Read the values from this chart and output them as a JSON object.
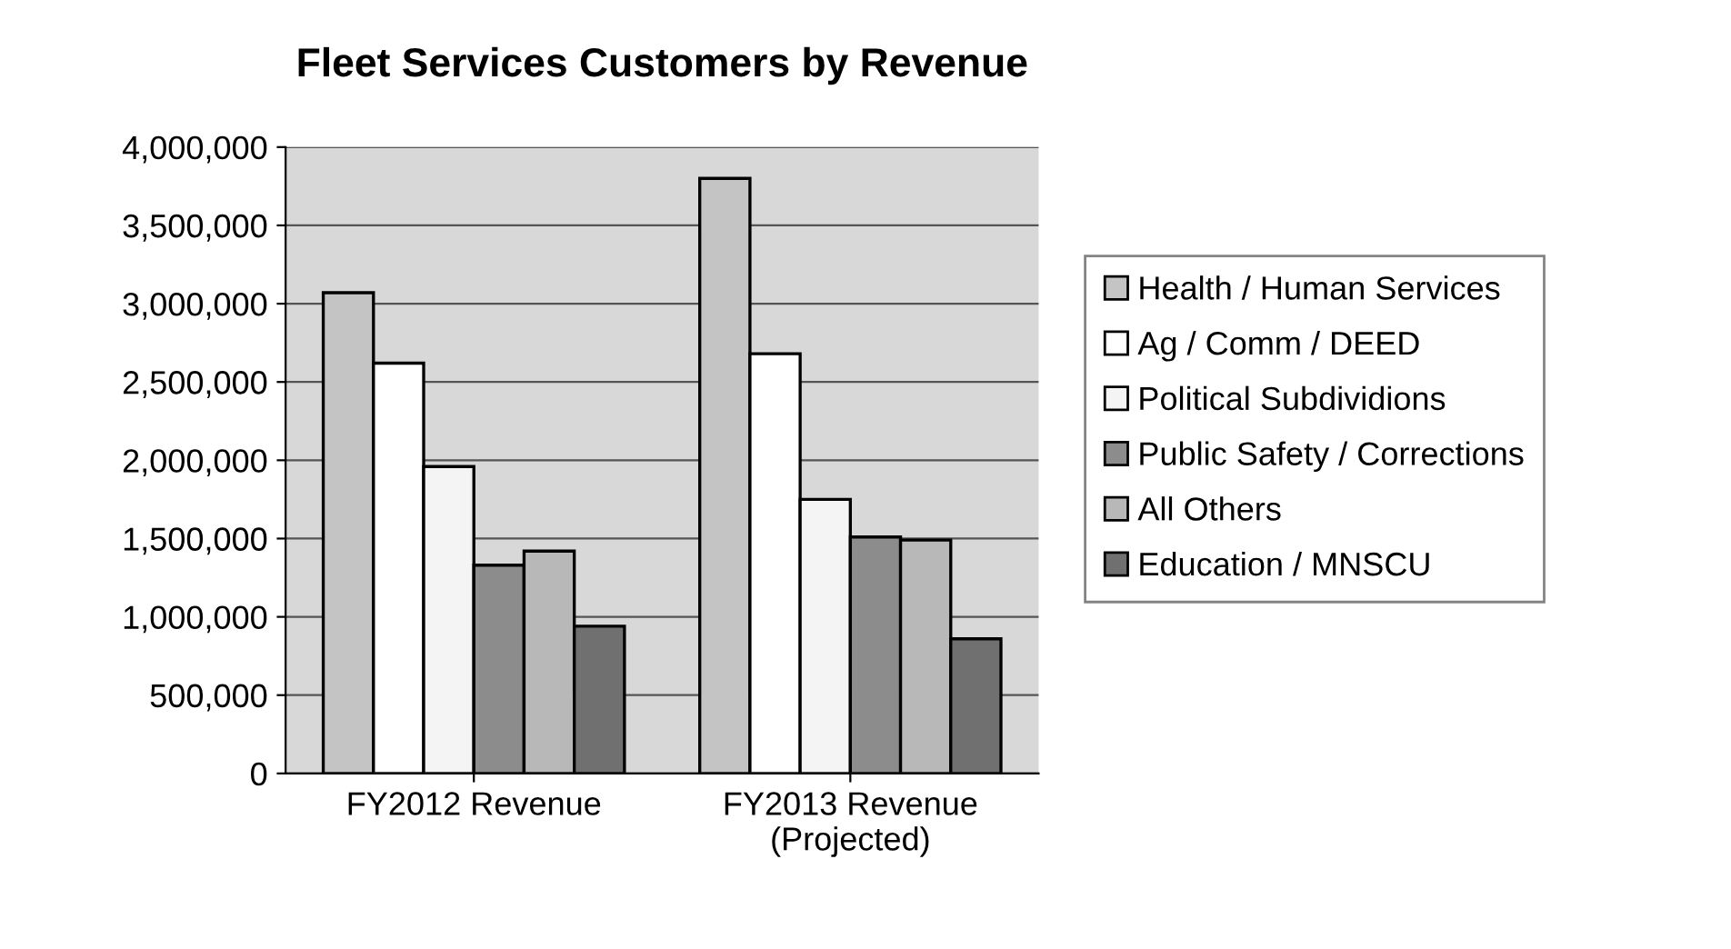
{
  "chart_data": {
    "type": "bar",
    "title": "Fleet Services Customers by Revenue",
    "categories": [
      "FY2012 Revenue",
      "FY2013 Revenue\n(Projected)"
    ],
    "series": [
      {
        "name": "Health / Human Services",
        "color": "#c4c4c4",
        "values": [
          3070000,
          3800000
        ]
      },
      {
        "name": "Ag / Comm / DEED",
        "color": "#ffffff",
        "values": [
          2620000,
          2680000
        ]
      },
      {
        "name": "Political Subdividions",
        "color": "#f4f4f4",
        "values": [
          1960000,
          1750000
        ]
      },
      {
        "name": "Public Safety / Corrections",
        "color": "#8c8c8c",
        "values": [
          1330000,
          1510000
        ]
      },
      {
        "name": "All Others",
        "color": "#b8b8b8",
        "values": [
          1420000,
          1490000
        ]
      },
      {
        "name": "Education / MNSCU",
        "color": "#707070",
        "values": [
          940000,
          860000
        ]
      }
    ],
    "ylim": [
      0,
      4000000
    ],
    "yticks": [
      {
        "value": 0,
        "label": "0"
      },
      {
        "value": 500000,
        "label": "500,000"
      },
      {
        "value": 1000000,
        "label": "1,000,000"
      },
      {
        "value": 1500000,
        "label": "1,500,000"
      },
      {
        "value": 2000000,
        "label": "2,000,000"
      },
      {
        "value": 2500000,
        "label": "2,500,000"
      },
      {
        "value": 3000000,
        "label": "3,000,000"
      },
      {
        "value": 3500000,
        "label": "3,500,000"
      },
      {
        "value": 4000000,
        "label": "4,000,000"
      }
    ],
    "grid": "y",
    "legend": "right"
  }
}
